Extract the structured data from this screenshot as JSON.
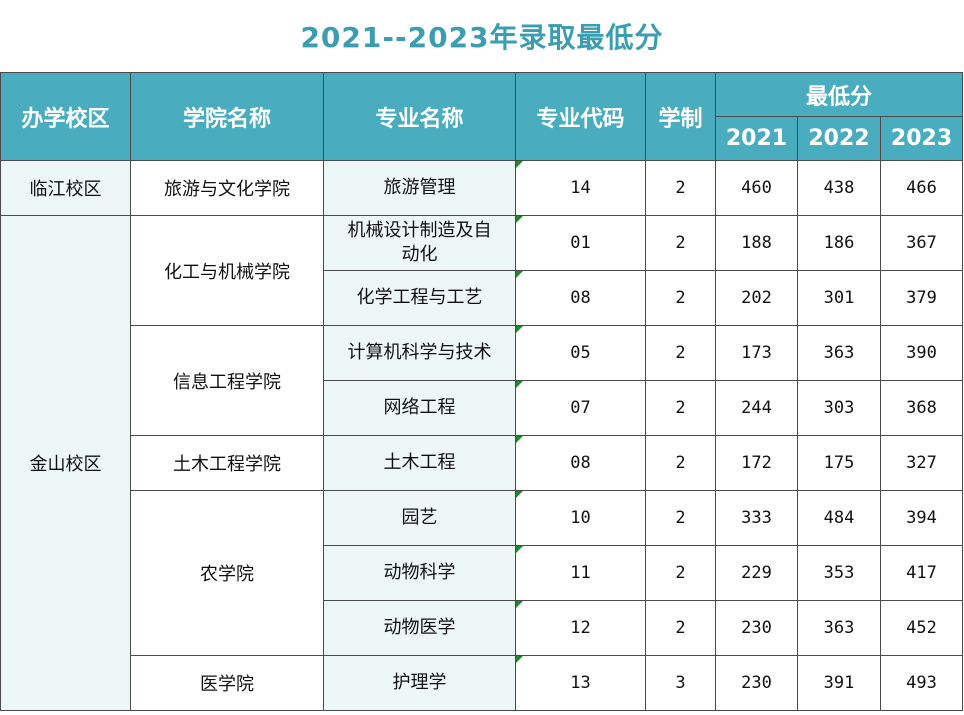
{
  "title": "2021--2023年录取最低分",
  "table": {
    "headers": {
      "campus": "办学校区",
      "college": "学院名称",
      "major": "专业名称",
      "code": "专业代码",
      "years": "学制",
      "min_score": "最低分",
      "score_years": [
        "2021",
        "2022",
        "2023"
      ]
    },
    "campuses": [
      {
        "name": "临江校区",
        "colleges": [
          {
            "name": "旅游与文化学院",
            "majors": [
              {
                "name": "旅游管理",
                "code": "14",
                "years": 2,
                "scores": [
                  460,
                  438,
                  466
                ]
              }
            ]
          }
        ]
      },
      {
        "name": "金山校区",
        "colleges": [
          {
            "name": "化工与机械学院",
            "majors": [
              {
                "name": "机械设计制造及自动化",
                "code": "01",
                "years": 2,
                "scores": [
                  188,
                  186,
                  367
                ]
              },
              {
                "name": "化学工程与工艺",
                "code": "08",
                "years": 2,
                "scores": [
                  202,
                  301,
                  379
                ]
              }
            ]
          },
          {
            "name": "信息工程学院",
            "majors": [
              {
                "name": "计算机科学与技术",
                "code": "05",
                "years": 2,
                "scores": [
                  173,
                  363,
                  390
                ]
              },
              {
                "name": "网络工程",
                "code": "07",
                "years": 2,
                "scores": [
                  244,
                  303,
                  368
                ]
              }
            ]
          },
          {
            "name": "土木工程学院",
            "majors": [
              {
                "name": "土木工程",
                "code": "08",
                "years": 2,
                "scores": [
                  172,
                  175,
                  327
                ]
              }
            ]
          },
          {
            "name": "农学院",
            "majors": [
              {
                "name": "园艺",
                "code": "10",
                "years": 2,
                "scores": [
                  333,
                  484,
                  394
                ]
              },
              {
                "name": "动物科学",
                "code": "11",
                "years": 2,
                "scores": [
                  229,
                  353,
                  417
                ]
              },
              {
                "name": "动物医学",
                "code": "12",
                "years": 2,
                "scores": [
                  230,
                  363,
                  452
                ]
              }
            ]
          },
          {
            "name": "医学院",
            "majors": [
              {
                "name": "护理学",
                "code": "13",
                "years": 3,
                "scores": [
                  230,
                  391,
                  493
                ]
              }
            ]
          }
        ]
      }
    ]
  }
}
